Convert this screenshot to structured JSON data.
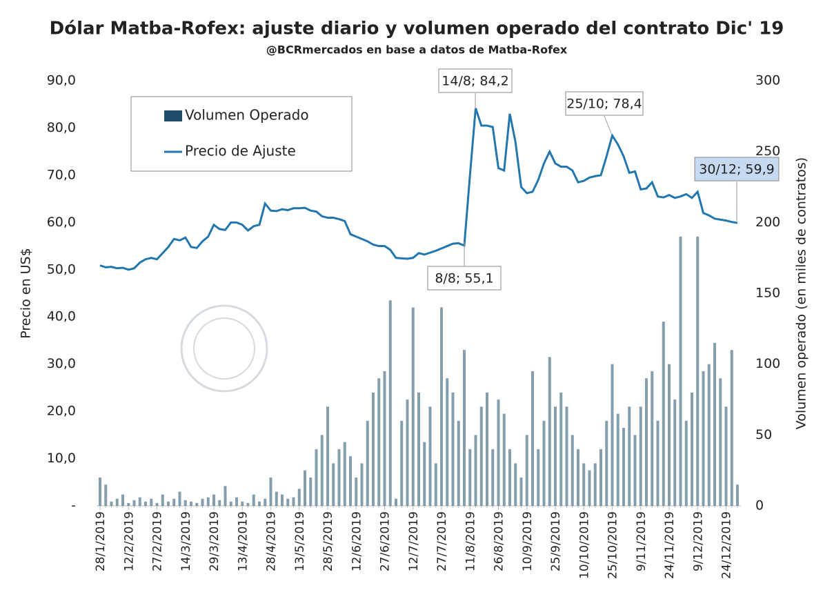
{
  "chart_data": {
    "type": "bar_line",
    "title": "Dólar Matba-Rofex: ajuste diario y volumen operado del contrato Dic' 19",
    "subtitle": "@BCRmercados en base a datos de Matba-Rofex",
    "y_label": "Precio en US$",
    "y2_label": "Volumen operado (en miles de contratos)",
    "categories": [
      "28/1/2019",
      null,
      null,
      null,
      null,
      "12/2/2019",
      null,
      null,
      null,
      null,
      "27/2/2019",
      null,
      null,
      null,
      null,
      "14/3/2019",
      null,
      null,
      null,
      null,
      "29/3/2019",
      null,
      null,
      null,
      null,
      "13/4/2019",
      null,
      null,
      null,
      null,
      "28/4/2019",
      null,
      null,
      null,
      null,
      "13/5/2019",
      null,
      null,
      null,
      null,
      "28/5/2019",
      null,
      null,
      null,
      null,
      "12/6/2019",
      null,
      null,
      null,
      null,
      "27/6/2019",
      null,
      null,
      null,
      null,
      "12/7/2019",
      null,
      null,
      null,
      null,
      "27/7/2019",
      null,
      null,
      null,
      null,
      "11/8/2019",
      null,
      null,
      null,
      null,
      "26/8/2019",
      null,
      null,
      null,
      null,
      "10/9/2019",
      null,
      null,
      null,
      null,
      "25/9/2019",
      null,
      null,
      null,
      null,
      "10/10/2019",
      null,
      null,
      null,
      null,
      "25/10/2019",
      null,
      null,
      null,
      null,
      "9/11/2019",
      null,
      null,
      null,
      null,
      "24/11/2019",
      null,
      null,
      null,
      null,
      "9/12/2019",
      null,
      null,
      null,
      null,
      "24/12/2019",
      null,
      null
    ],
    "series": [
      {
        "name": "Volumen Operado",
        "type": "bar",
        "axis": "y2",
        "color": "#1f4e6b",
        "values": [
          20,
          15,
          3,
          5,
          8,
          2,
          4,
          6,
          3,
          5,
          2,
          8,
          3,
          5,
          10,
          4,
          3,
          2,
          5,
          6,
          8,
          4,
          14,
          3,
          6,
          3,
          2,
          8,
          3,
          5,
          20,
          10,
          8,
          5,
          6,
          12,
          25,
          20,
          40,
          50,
          70,
          30,
          40,
          45,
          35,
          20,
          30,
          60,
          80,
          90,
          95,
          145,
          5,
          60,
          75,
          140,
          80,
          45,
          70,
          30,
          140,
          90,
          80,
          60,
          110,
          40,
          50,
          70,
          80,
          40,
          75,
          65,
          40,
          30,
          20,
          50,
          95,
          40,
          60,
          105,
          70,
          80,
          70,
          50,
          40,
          30,
          25,
          30,
          40,
          60,
          100,
          65,
          55,
          70,
          50,
          70,
          90,
          95,
          60,
          130,
          100,
          75,
          190,
          60,
          80,
          190,
          95,
          100,
          115,
          90,
          70,
          110,
          15
        ]
      },
      {
        "name": "Precio de Ajuste",
        "type": "line",
        "color": "#2176ae",
        "values": [
          50.9,
          50.5,
          50.6,
          50.3,
          50.4,
          50.0,
          50.3,
          51.5,
          52.2,
          52.5,
          52.2,
          53.5,
          54.8,
          56.5,
          56.2,
          56.8,
          54.8,
          54.6,
          56.0,
          57.0,
          59.5,
          58.6,
          58.4,
          60.0,
          60.0,
          59.5,
          58.3,
          59.2,
          59.5,
          64.0,
          62.5,
          62.4,
          62.8,
          62.6,
          63.0,
          63.0,
          63.1,
          62.5,
          62.3,
          61.3,
          61.0,
          61.0,
          60.7,
          60.3,
          57.5,
          57.0,
          56.5,
          56.0,
          55.3,
          55.0,
          55.0,
          54.2,
          52.5,
          52.4,
          52.3,
          52.5,
          53.5,
          53.2,
          53.6,
          54.0,
          54.5,
          55.0,
          55.5,
          55.6,
          55.1,
          70.0,
          84.2,
          80.5,
          80.5,
          80.2,
          71.5,
          71.0,
          83.0,
          77.0,
          67.5,
          66.2,
          66.5,
          69.0,
          72.5,
          75.0,
          72.5,
          71.8,
          71.8,
          71.0,
          68.5,
          68.8,
          69.5,
          69.8,
          70.0,
          74.0,
          78.4,
          76.5,
          74.0,
          70.5,
          70.8,
          67.0,
          67.2,
          68.5,
          65.5,
          65.3,
          65.8,
          65.2,
          65.5,
          66.0,
          65.2,
          66.5,
          62.0,
          61.5,
          60.8,
          60.6,
          60.4,
          60.1,
          59.9
        ]
      }
    ],
    "ylim": [
      0,
      90
    ],
    "yticks": [
      {
        "value": 0,
        "label": "-"
      },
      {
        "value": 10,
        "label": "10,0"
      },
      {
        "value": 20,
        "label": "20,0"
      },
      {
        "value": 30,
        "label": "30,0"
      },
      {
        "value": 40,
        "label": "40,0"
      },
      {
        "value": 50,
        "label": "50,0"
      },
      {
        "value": 60,
        "label": "60,0"
      },
      {
        "value": 70,
        "label": "70,0"
      },
      {
        "value": 80,
        "label": "80,0"
      },
      {
        "value": 90,
        "label": "90,0"
      }
    ],
    "y2lim": [
      0,
      300
    ],
    "y2ticks": [
      0,
      50,
      100,
      150,
      200,
      250,
      300
    ],
    "annotations": [
      {
        "text": "14/8; 84,2"
      },
      {
        "text": "8/8; 55,1"
      },
      {
        "text": "25/10; 78,4"
      },
      {
        "text": "30/12; 59,9"
      }
    ],
    "legend": "upper left",
    "grid": false
  }
}
